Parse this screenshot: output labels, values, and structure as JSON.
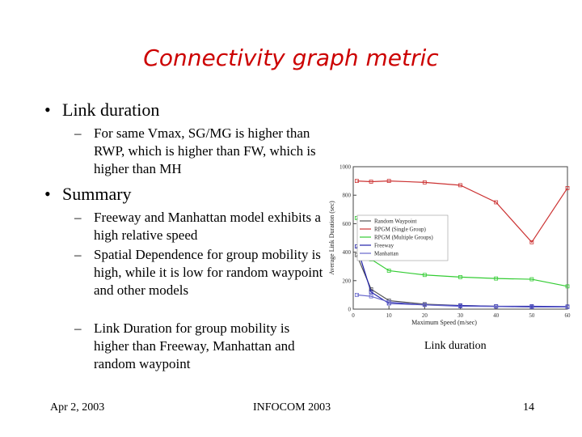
{
  "title": "Connectivity graph metric",
  "bullets": [
    {
      "label": "Link duration",
      "subs": [
        "For same Vmax, SG/MG is higher than RWP, which is higher than FW, which is higher than MH"
      ]
    },
    {
      "label": "Summary",
      "subs": [
        "Freeway and Manhattan model exhibits a high relative speed",
        "Spatial Dependence for group mobility is high, while it is low for random waypoint and other models",
        "Link Duration for group mobility is higher than Freeway, Manhattan and random waypoint"
      ]
    }
  ],
  "caption": "Link duration",
  "footer": {
    "date": "Apr 2, 2003",
    "venue": "INFOCOM 2003",
    "page": "14"
  },
  "chart_data": {
    "type": "line",
    "xlabel": "Maximum Speed (m/sec)",
    "ylabel": "Average Link Duration (sec)",
    "xlim": [
      0,
      60
    ],
    "ylim": [
      0,
      1000
    ],
    "xticks": [
      0,
      10,
      20,
      30,
      40,
      50,
      60
    ],
    "yticks": [
      0,
      200,
      400,
      600,
      800,
      1000
    ],
    "legend": "top-left",
    "series": [
      {
        "name": "Random Waypoint",
        "color": "#555555",
        "x": [
          1,
          5,
          10,
          20,
          30,
          40,
          50,
          60
        ],
        "y": [
          380,
          140,
          60,
          35,
          25,
          20,
          15,
          15
        ]
      },
      {
        "name": "RPGM (Single Group)",
        "color": "#cc3333",
        "x": [
          1,
          5,
          10,
          20,
          30,
          40,
          50,
          60
        ],
        "y": [
          900,
          895,
          900,
          890,
          870,
          750,
          470,
          850
        ]
      },
      {
        "name": "RPGM (Multiple Groups)",
        "color": "#33cc33",
        "x": [
          1,
          5,
          10,
          20,
          30,
          40,
          50,
          60
        ],
        "y": [
          640,
          350,
          270,
          240,
          225,
          215,
          210,
          160
        ]
      },
      {
        "name": "Freeway",
        "color": "#2222aa",
        "x": [
          1,
          5,
          10,
          20,
          30,
          40,
          50,
          60
        ],
        "y": [
          440,
          120,
          40,
          30,
          25,
          20,
          20,
          18
        ]
      },
      {
        "name": "Manhattan",
        "color": "#6666cc",
        "x": [
          1,
          5,
          10,
          20,
          30,
          40,
          50,
          60
        ],
        "y": [
          100,
          90,
          50,
          30,
          20,
          18,
          15,
          15
        ]
      }
    ]
  }
}
